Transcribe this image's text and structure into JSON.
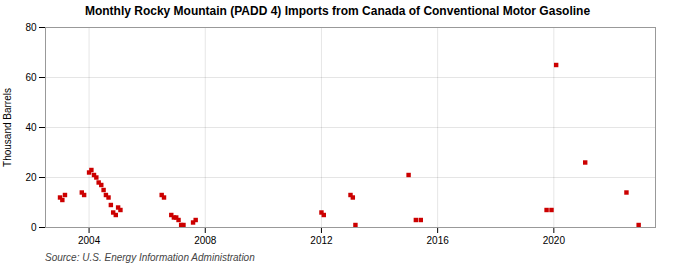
{
  "chart_data": {
    "type": "scatter",
    "title": "Monthly Rocky Mountain (PADD 4) Imports from Canada of Conventional Motor Gasoline",
    "ylabel": "Thousand Barrels",
    "source": "Source: U.S. Energy Information Administration",
    "color": "#cc0000",
    "marker": "square",
    "grid": true,
    "xlim": [
      2002.5,
      2023.5
    ],
    "ylim": [
      0,
      80
    ],
    "xticks": [
      2004,
      2008,
      2012,
      2016,
      2020
    ],
    "yticks": [
      0,
      20,
      40,
      60,
      80
    ],
    "x": [
      2003.0,
      2003.08,
      2003.17,
      2003.75,
      2003.83,
      2004.0,
      2004.08,
      2004.17,
      2004.25,
      2004.33,
      2004.42,
      2004.5,
      2004.58,
      2004.67,
      2004.75,
      2004.83,
      2004.92,
      2005.0,
      2005.08,
      2006.5,
      2006.58,
      2006.83,
      2006.92,
      2007.0,
      2007.08,
      2007.17,
      2007.25,
      2007.58,
      2007.67,
      2012.0,
      2012.08,
      2013.0,
      2013.08,
      2013.17,
      2015.0,
      2015.25,
      2015.42,
      2019.75,
      2019.92,
      2020.08,
      2021.08,
      2022.5,
      2022.92
    ],
    "values": [
      12,
      11,
      13,
      14,
      13,
      22,
      23,
      21,
      20,
      18,
      17,
      15,
      13,
      12,
      9,
      6,
      5,
      8,
      7,
      13,
      12,
      5,
      4,
      4,
      3,
      1,
      1,
      2,
      3,
      6,
      5,
      13,
      12,
      1,
      21,
      3,
      3,
      7,
      7,
      65,
      26,
      14,
      1
    ]
  }
}
